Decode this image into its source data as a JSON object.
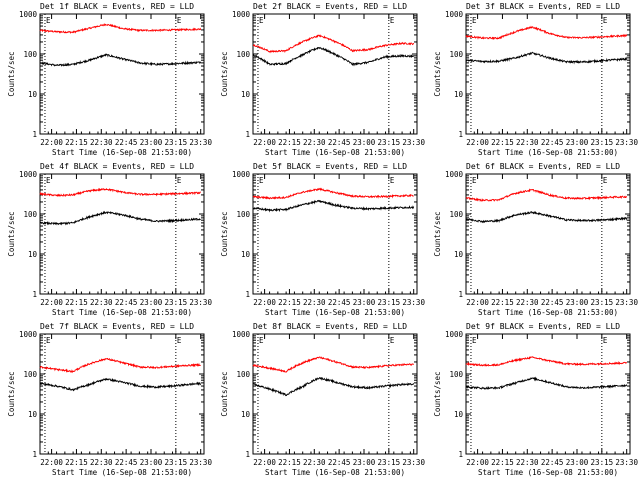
{
  "figure": {
    "x_axis_label": "Start Time (16-Sep-08 21:53:00)",
    "y_axis_label": "Counts/sec",
    "x_tick_labels": [
      "22:00",
      "22:15",
      "22:30",
      "22:45",
      "23:00",
      "23:15",
      "23:30"
    ],
    "y_tick_labels": [
      "1",
      "10",
      "100",
      "1000"
    ],
    "marker_labels": [
      "E",
      "E"
    ],
    "colors": {
      "background": "#ffffff",
      "axes": "#000000",
      "events": "#000000",
      "lld": "#ff0000"
    }
  },
  "chart_data": [
    {
      "type": "line",
      "title": "Det 1f BLACK = Events, RED = LLD",
      "xlabel": "Start Time (16-Sep-08 21:53:00)",
      "ylabel": "Counts/sec",
      "x_range_minutes": [
        0,
        99
      ],
      "ylim": [
        1,
        1000
      ],
      "y_scale": "log",
      "x_ticks_minutes": [
        7,
        22,
        37,
        52,
        67,
        82,
        97
      ],
      "x_tick_labels": [
        "22:00",
        "22:15",
        "22:30",
        "22:45",
        "23:00",
        "23:15",
        "23:30"
      ],
      "markers": [
        {
          "x_minutes": 3,
          "label": "E"
        },
        {
          "x_minutes": 82,
          "label": "E"
        }
      ],
      "x": [
        0,
        10,
        20,
        30,
        40,
        50,
        60,
        70,
        80,
        90,
        97
      ],
      "series": [
        {
          "name": "LLD",
          "color": "#ff0000",
          "values": [
            390,
            360,
            350,
            440,
            550,
            430,
            390,
            390,
            400,
            410,
            420
          ]
        },
        {
          "name": "Events",
          "color": "#000000",
          "values": [
            60,
            52,
            55,
            70,
            95,
            75,
            60,
            55,
            57,
            60,
            62
          ]
        }
      ]
    },
    {
      "type": "line",
      "title": "Det 2f BLACK = Events, RED = LLD",
      "xlabel": "Start Time (16-Sep-08 21:53:00)",
      "ylabel": "Counts/sec",
      "x_range_minutes": [
        0,
        99
      ],
      "ylim": [
        1,
        1000
      ],
      "y_scale": "log",
      "x_ticks_minutes": [
        7,
        22,
        37,
        52,
        67,
        82,
        97
      ],
      "x_tick_labels": [
        "22:00",
        "22:15",
        "22:30",
        "22:45",
        "23:00",
        "23:15",
        "23:30"
      ],
      "markers": [
        {
          "x_minutes": 3,
          "label": "E"
        },
        {
          "x_minutes": 82,
          "label": "E"
        }
      ],
      "x": [
        0,
        10,
        20,
        30,
        40,
        50,
        60,
        70,
        80,
        90,
        97
      ],
      "series": [
        {
          "name": "LLD",
          "color": "#ff0000",
          "values": [
            170,
            115,
            120,
            200,
            290,
            200,
            120,
            130,
            165,
            185,
            180
          ]
        },
        {
          "name": "Events",
          "color": "#000000",
          "values": [
            95,
            55,
            58,
            95,
            145,
            95,
            55,
            62,
            85,
            90,
            88
          ]
        }
      ]
    },
    {
      "type": "line",
      "title": "Det 3f BLACK = Events, RED = LLD",
      "xlabel": "Start Time (16-Sep-08 21:53:00)",
      "ylabel": "Counts/sec",
      "x_range_minutes": [
        0,
        99
      ],
      "ylim": [
        1,
        1000
      ],
      "y_scale": "log",
      "x_ticks_minutes": [
        7,
        22,
        37,
        52,
        67,
        82,
        97
      ],
      "x_tick_labels": [
        "22:00",
        "22:15",
        "22:30",
        "22:45",
        "23:00",
        "23:15",
        "23:30"
      ],
      "markers": [
        {
          "x_minutes": 3,
          "label": "E"
        },
        {
          "x_minutes": 82,
          "label": "E"
        }
      ],
      "x": [
        0,
        10,
        20,
        30,
        40,
        50,
        60,
        70,
        80,
        90,
        97
      ],
      "series": [
        {
          "name": "LLD",
          "color": "#ff0000",
          "values": [
            280,
            250,
            250,
            360,
            470,
            330,
            260,
            255,
            265,
            280,
            290
          ]
        },
        {
          "name": "Events",
          "color": "#000000",
          "values": [
            70,
            65,
            66,
            80,
            105,
            80,
            64,
            63,
            67,
            72,
            75
          ]
        }
      ]
    },
    {
      "type": "line",
      "title": "Det 4f BLACK = Events, RED = LLD",
      "xlabel": "Start Time (16-Sep-08 21:53:00)",
      "ylabel": "Counts/sec",
      "x_range_minutes": [
        0,
        99
      ],
      "ylim": [
        1,
        1000
      ],
      "y_scale": "log",
      "x_ticks_minutes": [
        7,
        22,
        37,
        52,
        67,
        82,
        97
      ],
      "x_tick_labels": [
        "22:00",
        "22:15",
        "22:30",
        "22:45",
        "23:00",
        "23:15",
        "23:30"
      ],
      "markers": [
        {
          "x_minutes": 3,
          "label": "E"
        },
        {
          "x_minutes": 82,
          "label": "E"
        }
      ],
      "x": [
        0,
        10,
        20,
        30,
        40,
        50,
        60,
        70,
        80,
        90,
        97
      ],
      "series": [
        {
          "name": "LLD",
          "color": "#ff0000",
          "values": [
            320,
            290,
            300,
            380,
            420,
            350,
            310,
            310,
            320,
            330,
            340
          ]
        },
        {
          "name": "Events",
          "color": "#000000",
          "values": [
            60,
            57,
            60,
            85,
            110,
            95,
            75,
            66,
            68,
            72,
            75
          ]
        }
      ]
    },
    {
      "type": "line",
      "title": "Det 5f BLACK = Events, RED = LLD",
      "xlabel": "Start Time (16-Sep-08 21:53:00)",
      "ylabel": "Counts/sec",
      "x_range_minutes": [
        0,
        99
      ],
      "ylim": [
        1,
        1000
      ],
      "y_scale": "log",
      "x_ticks_minutes": [
        7,
        22,
        37,
        52,
        67,
        82,
        97
      ],
      "x_tick_labels": [
        "22:00",
        "22:15",
        "22:30",
        "22:45",
        "23:00",
        "23:15",
        "23:30"
      ],
      "markers": [
        {
          "x_minutes": 3,
          "label": "E"
        },
        {
          "x_minutes": 82,
          "label": "E"
        }
      ],
      "x": [
        0,
        10,
        20,
        30,
        40,
        50,
        60,
        70,
        80,
        90,
        97
      ],
      "series": [
        {
          "name": "LLD",
          "color": "#ff0000",
          "values": [
            270,
            250,
            260,
            350,
            420,
            340,
            280,
            270,
            275,
            285,
            290
          ]
        },
        {
          "name": "Events",
          "color": "#000000",
          "values": [
            140,
            125,
            130,
            170,
            210,
            165,
            140,
            135,
            140,
            145,
            148
          ]
        }
      ]
    },
    {
      "type": "line",
      "title": "Det 6f BLACK = Events, RED = LLD",
      "xlabel": "Start Time (16-Sep-08 21:53:00)",
      "ylabel": "Counts/sec",
      "x_range_minutes": [
        0,
        99
      ],
      "ylim": [
        1,
        1000
      ],
      "y_scale": "log",
      "x_ticks_minutes": [
        7,
        22,
        37,
        52,
        67,
        82,
        97
      ],
      "x_tick_labels": [
        "22:00",
        "22:15",
        "22:30",
        "22:45",
        "23:00",
        "23:15",
        "23:30"
      ],
      "markers": [
        {
          "x_minutes": 3,
          "label": "E"
        },
        {
          "x_minutes": 82,
          "label": "E"
        }
      ],
      "x": [
        0,
        10,
        20,
        30,
        40,
        50,
        60,
        70,
        80,
        90,
        97
      ],
      "series": [
        {
          "name": "LLD",
          "color": "#ff0000",
          "values": [
            250,
            220,
            225,
            330,
            400,
            300,
            250,
            245,
            255,
            265,
            270
          ]
        },
        {
          "name": "Events",
          "color": "#000000",
          "values": [
            75,
            65,
            68,
            95,
            110,
            90,
            72,
            68,
            70,
            74,
            78
          ]
        }
      ]
    },
    {
      "type": "line",
      "title": "Det 7f BLACK = Events, RED = LLD",
      "xlabel": "Start Time (16-Sep-08 21:53:00)",
      "ylabel": "Counts/sec",
      "x_range_minutes": [
        0,
        99
      ],
      "ylim": [
        1,
        1000
      ],
      "y_scale": "log",
      "x_ticks_minutes": [
        7,
        22,
        37,
        52,
        67,
        82,
        97
      ],
      "x_tick_labels": [
        "22:00",
        "22:15",
        "22:30",
        "22:45",
        "23:00",
        "23:15",
        "23:30"
      ],
      "markers": [
        {
          "x_minutes": 3,
          "label": "E"
        },
        {
          "x_minutes": 82,
          "label": "E"
        }
      ],
      "x": [
        0,
        10,
        20,
        30,
        40,
        50,
        60,
        70,
        80,
        90,
        97
      ],
      "series": [
        {
          "name": "LLD",
          "color": "#ff0000",
          "values": [
            150,
            130,
            115,
            180,
            240,
            190,
            150,
            145,
            155,
            165,
            170
          ]
        },
        {
          "name": "Events",
          "color": "#000000",
          "values": [
            58,
            50,
            40,
            55,
            75,
            62,
            50,
            47,
            50,
            55,
            58
          ]
        }
      ]
    },
    {
      "type": "line",
      "title": "Det 8f BLACK = Events, RED = LLD",
      "xlabel": "Start Time (16-Sep-08 21:53:00)",
      "ylabel": "Counts/sec",
      "x_range_minutes": [
        0,
        99
      ],
      "ylim": [
        1,
        1000
      ],
      "y_scale": "log",
      "x_ticks_minutes": [
        7,
        22,
        37,
        52,
        67,
        82,
        97
      ],
      "x_tick_labels": [
        "22:00",
        "22:15",
        "22:30",
        "22:45",
        "23:00",
        "23:15",
        "23:30"
      ],
      "markers": [
        {
          "x_minutes": 3,
          "label": "E"
        },
        {
          "x_minutes": 82,
          "label": "E"
        }
      ],
      "x": [
        0,
        10,
        20,
        30,
        40,
        50,
        60,
        70,
        80,
        90,
        97
      ],
      "series": [
        {
          "name": "LLD",
          "color": "#ff0000",
          "values": [
            165,
            140,
            115,
            190,
            260,
            200,
            150,
            145,
            160,
            170,
            175
          ]
        },
        {
          "name": "Events",
          "color": "#000000",
          "values": [
            55,
            42,
            30,
            48,
            80,
            62,
            48,
            45,
            50,
            55,
            55
          ]
        }
      ]
    },
    {
      "type": "line",
      "title": "Det 9f BLACK = Events, RED = LLD",
      "xlabel": "Start Time (16-Sep-08 21:53:00)",
      "ylabel": "Counts/sec",
      "x_range_minutes": [
        0,
        99
      ],
      "ylim": [
        1,
        1000
      ],
      "y_scale": "log",
      "x_ticks_minutes": [
        7,
        22,
        37,
        52,
        67,
        82,
        97
      ],
      "x_tick_labels": [
        "22:00",
        "22:15",
        "22:30",
        "22:45",
        "23:00",
        "23:15",
        "23:30"
      ],
      "markers": [
        {
          "x_minutes": 3,
          "label": "E"
        },
        {
          "x_minutes": 82,
          "label": "E"
        }
      ],
      "x": [
        0,
        10,
        20,
        30,
        40,
        50,
        60,
        70,
        80,
        90,
        97
      ],
      "series": [
        {
          "name": "LLD",
          "color": "#ff0000",
          "values": [
            180,
            165,
            170,
            220,
            260,
            215,
            180,
            175,
            180,
            185,
            190
          ]
        },
        {
          "name": "Events",
          "color": "#000000",
          "values": [
            48,
            44,
            45,
            60,
            78,
            62,
            48,
            45,
            47,
            50,
            52
          ]
        }
      ]
    }
  ]
}
